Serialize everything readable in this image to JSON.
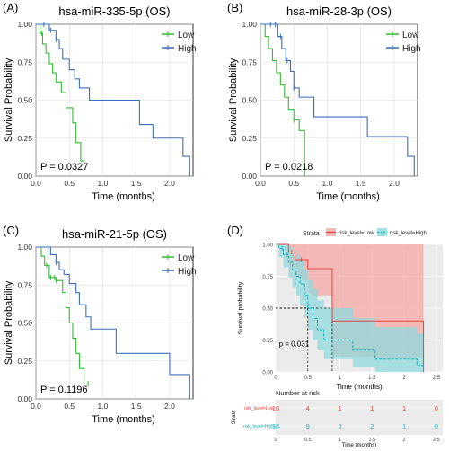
{
  "chart_data": [
    {
      "type": "line",
      "panel_label": "(A)",
      "title": "hsa-miR-335-5p (OS)",
      "xlabel": "Time (months)",
      "ylabel": "Survival Probability",
      "xlim": [
        0,
        2.35
      ],
      "ylim": [
        0,
        1.0
      ],
      "xticks": [
        "0.0",
        "0.5",
        "1.0",
        "1.5",
        "2.0"
      ],
      "xtick_values": [
        0,
        0.5,
        1.0,
        1.5,
        2.0
      ],
      "yticks": [
        "0.00",
        "0.25",
        "0.50",
        "0.75",
        "1.00"
      ],
      "ytick_values": [
        0,
        0.25,
        0.5,
        0.75,
        1.0
      ],
      "grid": true,
      "legend_position": "top-right",
      "annotation": "P = 0.0327",
      "series": [
        {
          "name": "Low",
          "color": "#33bb33",
          "x": [
            0,
            0.06,
            0.1,
            0.15,
            0.2,
            0.25,
            0.3,
            0.38,
            0.45,
            0.55,
            0.6,
            0.67,
            0.72
          ],
          "y": [
            1.0,
            0.94,
            0.87,
            0.81,
            0.74,
            0.68,
            0.62,
            0.55,
            0.45,
            0.35,
            0.22,
            0.1,
            0.1
          ],
          "censor_x": [
            0.09,
            0.72
          ]
        },
        {
          "name": "High",
          "color": "#3a6ebc",
          "x": [
            0,
            0.15,
            0.2,
            0.3,
            0.35,
            0.4,
            0.5,
            0.58,
            0.65,
            0.8,
            1.1,
            1.55,
            1.75,
            2.2,
            2.3
          ],
          "y": [
            1.0,
            1.0,
            0.96,
            0.9,
            0.84,
            0.77,
            0.7,
            0.64,
            0.58,
            0.5,
            0.5,
            0.34,
            0.25,
            0.13,
            0.0
          ],
          "censor_x": [
            0.12,
            0.22,
            0.3,
            0.45
          ]
        }
      ]
    },
    {
      "type": "line",
      "panel_label": "(B)",
      "title": "hsa-miR-28-3p (OS)",
      "xlabel": "Time (months)",
      "ylabel": "Survival Probability",
      "xlim": [
        0,
        2.35
      ],
      "ylim": [
        0,
        1.0
      ],
      "xticks": [
        "0.0",
        "0.5",
        "1.0",
        "1.5",
        "2.0"
      ],
      "xtick_values": [
        0,
        0.5,
        1.0,
        1.5,
        2.0
      ],
      "yticks": [
        "0.00",
        "0.25",
        "0.50",
        "0.75",
        "1.00"
      ],
      "ytick_values": [
        0,
        0.25,
        0.5,
        0.75,
        1.0
      ],
      "grid": true,
      "legend_position": "top-right",
      "annotation": "P = 0.0218",
      "series": [
        {
          "name": "Low",
          "color": "#33bb33",
          "x": [
            0,
            0.07,
            0.12,
            0.18,
            0.24,
            0.3,
            0.36,
            0.42,
            0.5,
            0.58,
            0.66
          ],
          "y": [
            1.0,
            0.92,
            0.84,
            0.76,
            0.68,
            0.6,
            0.52,
            0.44,
            0.37,
            0.3,
            0.0
          ],
          "censor_x": [
            0.5
          ]
        },
        {
          "name": "High",
          "color": "#3a6ebc",
          "x": [
            0,
            0.2,
            0.26,
            0.32,
            0.38,
            0.45,
            0.5,
            0.58,
            0.65,
            0.8,
            1.0,
            1.2,
            1.6,
            2.2,
            2.3
          ],
          "y": [
            1.0,
            1.0,
            0.92,
            0.84,
            0.76,
            0.69,
            0.58,
            0.52,
            0.52,
            0.39,
            0.39,
            0.39,
            0.26,
            0.13,
            0.0
          ],
          "censor_x": [
            0.15,
            0.22,
            0.3,
            0.4,
            0.5
          ]
        }
      ]
    },
    {
      "type": "line",
      "panel_label": "(C)",
      "title": "hsa-miR-21-5p (OS)",
      "xlabel": "Time (months)",
      "ylabel": "Survival Probability",
      "xlim": [
        0,
        2.35
      ],
      "ylim": [
        0,
        1.0
      ],
      "xticks": [
        "0.0",
        "0.5",
        "1.0",
        "1.5",
        "2.0"
      ],
      "xtick_values": [
        0,
        0.5,
        1.0,
        1.5,
        2.0
      ],
      "yticks": [
        "0.00",
        "0.25",
        "0.50",
        "0.75",
        "1.00"
      ],
      "ytick_values": [
        0,
        0.25,
        0.5,
        0.75,
        1.0
      ],
      "grid": true,
      "legend_position": "top-right",
      "annotation": "P = 0.1196",
      "series": [
        {
          "name": "Low",
          "color": "#33bb33",
          "x": [
            0,
            0.08,
            0.13,
            0.2,
            0.3,
            0.4,
            0.45,
            0.5,
            0.55,
            0.6,
            0.65,
            0.72
          ],
          "y": [
            1.0,
            0.94,
            0.88,
            0.8,
            0.78,
            0.7,
            0.6,
            0.5,
            0.4,
            0.3,
            0.2,
            0.1
          ],
          "censor_x": [
            0.16,
            0.22,
            0.28,
            0.3,
            0.78
          ]
        },
        {
          "name": "High",
          "color": "#3a6ebc",
          "x": [
            0,
            0.12,
            0.22,
            0.3,
            0.35,
            0.42,
            0.5,
            0.6,
            0.65,
            0.75,
            0.82,
            1.2,
            1.55,
            2.0,
            2.3
          ],
          "y": [
            1.0,
            1.0,
            0.95,
            0.9,
            0.85,
            0.82,
            0.76,
            0.7,
            0.62,
            0.54,
            0.46,
            0.3,
            0.3,
            0.16,
            0.0
          ],
          "censor_x": [
            0.18,
            0.3,
            0.45
          ]
        }
      ]
    },
    {
      "type": "line",
      "panel_label": "(D)",
      "legend_title": "Strata",
      "legend_position": "top",
      "xlabel": "Time (months)",
      "ylabel": "Survival probability",
      "xlim": [
        0,
        2.6
      ],
      "ylim": [
        0,
        1.0
      ],
      "xticks": [
        "0",
        "0.5",
        "1",
        "1.5",
        "2",
        "2.5"
      ],
      "xtick_values": [
        0,
        0.5,
        1.0,
        1.5,
        2.0,
        2.5
      ],
      "yticks": [
        "0.00",
        "0.25",
        "0.50",
        "0.75",
        "1.00"
      ],
      "ytick_values": [
        0,
        0.25,
        0.5,
        0.75,
        1.0
      ],
      "grid": true,
      "annotation": "p = 0.031",
      "median_lines": [
        {
          "x": 0.5,
          "y": 0.5
        },
        {
          "x": 0.88,
          "y": 0.5
        }
      ],
      "series": [
        {
          "name": "risk_level=Low",
          "color": "#e8423c",
          "band_color": "#f5a8a4",
          "dashed": false,
          "x": [
            0,
            0.2,
            0.3,
            0.5,
            0.55,
            0.88,
            2.0,
            2.3
          ],
          "y": [
            1.0,
            0.94,
            0.88,
            0.81,
            0.81,
            0.4,
            0.4,
            0.0
          ],
          "lower": [
            1.0,
            0.82,
            0.72,
            0.62,
            0.6,
            0.12,
            0.12,
            0.0
          ],
          "upper": [
            1.0,
            1.0,
            1.0,
            1.0,
            1.0,
            1.0,
            1.0,
            1.0
          ],
          "censor_x": [
            0.25,
            0.4
          ]
        },
        {
          "name": "risk_level=High",
          "color": "#1ab3bd",
          "band_color": "#8fd9de",
          "dashed": true,
          "x": [
            0,
            0.05,
            0.12,
            0.2,
            0.26,
            0.32,
            0.38,
            0.45,
            0.5,
            0.58,
            0.65,
            0.75,
            0.88,
            1.2,
            1.55,
            2.2,
            2.3
          ],
          "y": [
            1.0,
            0.97,
            0.92,
            0.86,
            0.8,
            0.75,
            0.69,
            0.6,
            0.5,
            0.42,
            0.33,
            0.25,
            0.25,
            0.17,
            0.1,
            0.05,
            0.0
          ],
          "lower": [
            1.0,
            0.9,
            0.82,
            0.74,
            0.66,
            0.6,
            0.53,
            0.43,
            0.33,
            0.25,
            0.17,
            0.1,
            0.1,
            0.04,
            0.0,
            0.0,
            0.0
          ],
          "upper": [
            1.0,
            1.0,
            1.0,
            0.98,
            0.95,
            0.92,
            0.87,
            0.8,
            0.72,
            0.65,
            0.56,
            0.5,
            0.5,
            0.42,
            0.35,
            0.3,
            0.3
          ],
          "censor_x": [
            0.1,
            0.18
          ]
        }
      ],
      "risk_table": {
        "title": "Number at risk",
        "ylabel": "Strata",
        "xlabel": "Time (months)",
        "rows": [
          {
            "label": "risk_level=Low",
            "color": "#e8423c",
            "values": [
              "16",
              "4",
              "1",
              "1",
              "1",
              "0"
            ]
          },
          {
            "label": "risk_level=High",
            "color": "#1ab3bd",
            "values": [
              "36",
              "9",
              "2",
              "2",
              "1",
              "0"
            ]
          }
        ]
      }
    }
  ]
}
